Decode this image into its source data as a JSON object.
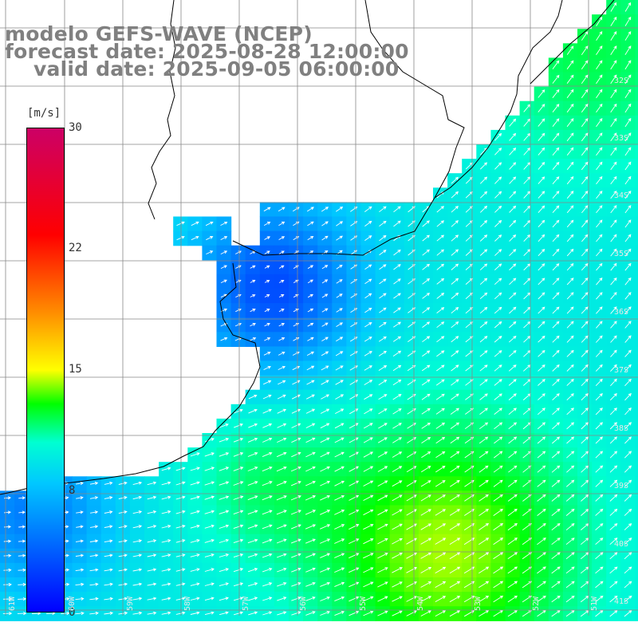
{
  "title": {
    "line1": "modelo GEFS-WAVE (NCEP)",
    "line2": "forecast date: 2025-08-28 12:00:00",
    "line3": "valid date: 2025-09-05 06:00:00"
  },
  "colorbar": {
    "unit": "[m/s]",
    "ticks": [
      "30",
      "22",
      "15",
      "8",
      "0"
    ]
  },
  "lat_labels": [
    "32S",
    "33S",
    "34S",
    "35S",
    "36S",
    "37S",
    "38S",
    "39S",
    "40S",
    "41S"
  ],
  "lon_labels": [
    "61W",
    "60W",
    "59W",
    "58W",
    "57W",
    "56W",
    "55W",
    "54W",
    "53W",
    "52W",
    "51W"
  ],
  "colors": {
    "land": "#ffffff",
    "grid": "#888888",
    "coast": "#000000",
    "arrow": "#ffffff",
    "title": "#808080"
  }
}
